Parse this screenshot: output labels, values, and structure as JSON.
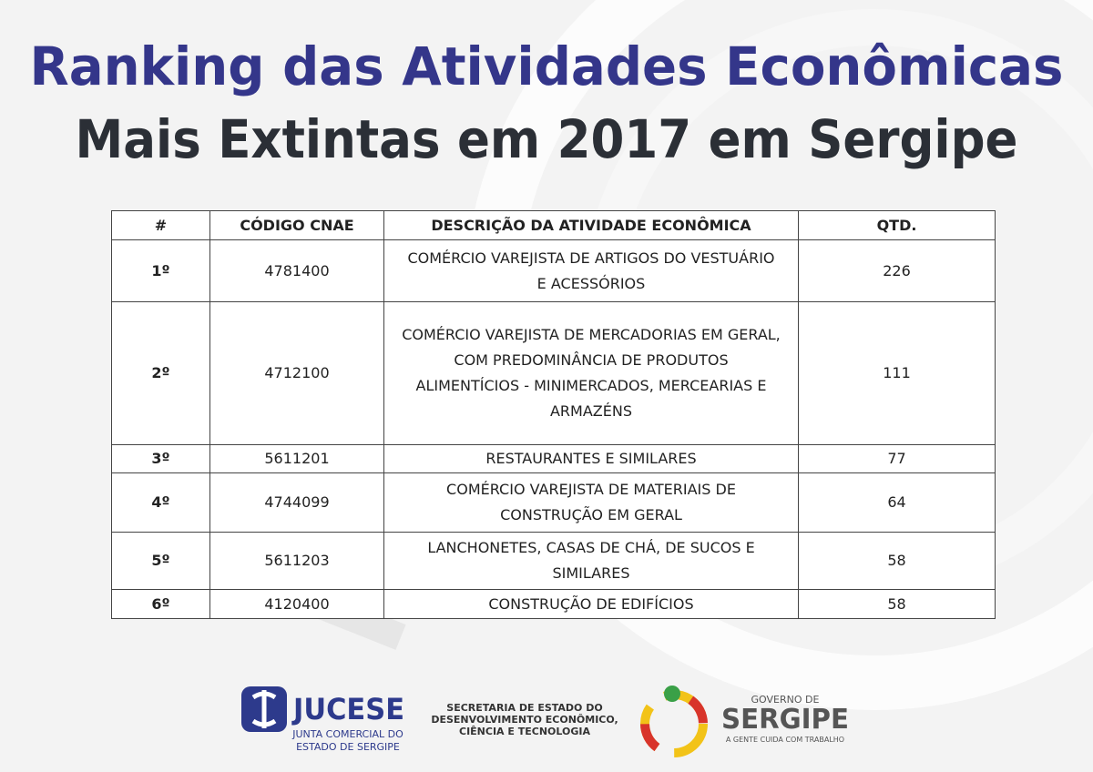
{
  "header": {
    "title_line1": "Ranking das Atividades Econômicas",
    "title_line2": "Mais Extintas em 2017 em Sergipe"
  },
  "table": {
    "columns": [
      "#",
      "CÓDIGO CNAE",
      "DESCRIÇÃO DA ATIVIDADE ECONÔMICA",
      "QTD."
    ],
    "rows": [
      [
        "1º",
        "4781400",
        "COMÉRCIO VAREJISTA DE ARTIGOS DO VESTUÁRIO E ACESSÓRIOS",
        226
      ],
      [
        "2º",
        "4712100",
        "COMÉRCIO VAREJISTA DE MERCADORIAS EM GERAL, COM PREDOMINÂNCIA DE PRODUTOS ALIMENTÍCIOS - MINIMERCADOS, MERCEARIAS E ARMAZÉNS",
        111
      ],
      [
        "3º",
        "5611201",
        "RESTAURANTES E SIMILARES",
        77
      ],
      [
        "4º",
        "4744099",
        "COMÉRCIO VAREJISTA DE MATERIAIS DE CONSTRUÇÃO EM GERAL",
        64
      ],
      [
        "5º",
        "5611203",
        "LANCHONETES, CASAS DE CHÁ, DE SUCOS E SIMILARES",
        58
      ],
      [
        "6º",
        "4120400",
        "CONSTRUÇÃO DE EDIFÍCIOS",
        58
      ]
    ]
  },
  "footer": {
    "jucese_name": "JUCESE",
    "jucese_sub1": "JUNTA COMERCIAL DO",
    "jucese_sub2": "ESTADO DE SERGIPE",
    "secretaria_line1": "SECRETARIA DE ESTADO DO",
    "secretaria_line2": "DESENVOLVIMENTO ECONÔMICO,",
    "secretaria_line3": "CIÊNCIA E TECNOLOGIA",
    "gov_top": "GOVERNO DE",
    "gov_name": "SERGIPE",
    "gov_slogan": "A GENTE CUIDA COM TRABALHO"
  }
}
